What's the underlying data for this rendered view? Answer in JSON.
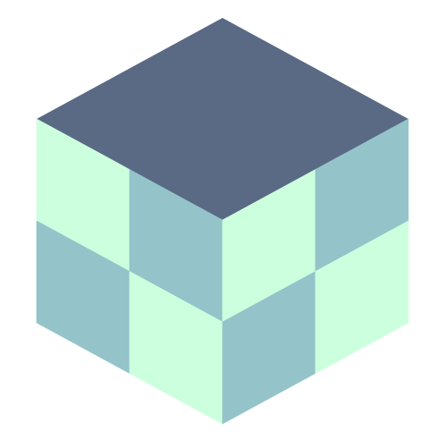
{
  "cube": {
    "top_color": "#5a6a85",
    "light_color": "#ccffdd",
    "dark_color": "#94c4c9",
    "left_face_pattern": [
      [
        "light",
        "dark"
      ],
      [
        "dark",
        "light"
      ]
    ],
    "right_face_pattern": [
      [
        "light",
        "dark"
      ],
      [
        "dark",
        "light"
      ]
    ]
  }
}
